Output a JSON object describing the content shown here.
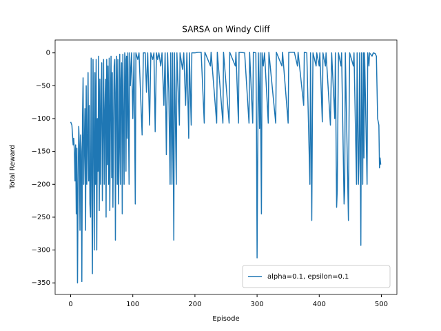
{
  "chart_data": {
    "type": "line",
    "title": "SARSA on Windy Cliff",
    "x_label": "Episode",
    "y_label": "Total Reward",
    "xlim": [
      -25,
      525
    ],
    "ylim": [
      -367.6,
      19.6
    ],
    "xticks": [
      0,
      100,
      200,
      300,
      400,
      500
    ],
    "yticks": [
      {
        "value": -350,
        "label": "−350"
      },
      {
        "value": -300,
        "label": "−300"
      },
      {
        "value": -250,
        "label": "−250"
      },
      {
        "value": -200,
        "label": "−200"
      },
      {
        "value": -150,
        "label": "−150"
      },
      {
        "value": -100,
        "label": "−100"
      },
      {
        "value": -50,
        "label": "−50"
      },
      0
    ],
    "legend": "lower right",
    "x": [
      0,
      2,
      4,
      5,
      6,
      7,
      8,
      9,
      10,
      11,
      12,
      13,
      14,
      15,
      16,
      17,
      18,
      19,
      20,
      21,
      22,
      23,
      24,
      25,
      26,
      27,
      28,
      29,
      30,
      31,
      32,
      33,
      34,
      35,
      36,
      37,
      38,
      39,
      40,
      41,
      42,
      43,
      44,
      45,
      46,
      47,
      48,
      49,
      50,
      51,
      52,
      53,
      54,
      55,
      56,
      57,
      58,
      59,
      60,
      61,
      62,
      63,
      64,
      65,
      66,
      67,
      68,
      69,
      70,
      71,
      72,
      73,
      74,
      75,
      76,
      77,
      78,
      79,
      80,
      81,
      82,
      83,
      84,
      85,
      86,
      87,
      88,
      89,
      90,
      91,
      92,
      94,
      95,
      96,
      98,
      100,
      102,
      104,
      105,
      108,
      110,
      115,
      117,
      120,
      122,
      124,
      127,
      129,
      132,
      134,
      136,
      138,
      140,
      142,
      145,
      147,
      150,
      152,
      154,
      156,
      158,
      160,
      161,
      163,
      164,
      166,
      167,
      170,
      171,
      175,
      176,
      180,
      182,
      185,
      187,
      190,
      191,
      194,
      195,
      200,
      205,
      210,
      215,
      216,
      225,
      226,
      235,
      236,
      245,
      246,
      255,
      256,
      265,
      266,
      270,
      271,
      280,
      287,
      288,
      293,
      294,
      298,
      299,
      300,
      301,
      302,
      304,
      305,
      307,
      308,
      310,
      312,
      318,
      319,
      330,
      331,
      340,
      341,
      350,
      351,
      360,
      365,
      366,
      375,
      376,
      380,
      385,
      386,
      388,
      389,
      390,
      395,
      396,
      400,
      401,
      405,
      406,
      410,
      411,
      418,
      420,
      425,
      426,
      428,
      429,
      430,
      431,
      435,
      436,
      440,
      441,
      442,
      447,
      448,
      449,
      455,
      456,
      460,
      461,
      463,
      464,
      465,
      467,
      468,
      470,
      471,
      472,
      473,
      477,
      478,
      480,
      481,
      485,
      487,
      490,
      492,
      494,
      495,
      496,
      497,
      498,
      499
    ],
    "series": [
      {
        "name": "alpha=0.1, epsilon=0.1",
        "color": "#1f77b4",
        "values": [
          -105,
          -110,
          -140,
          -130,
          -150,
          -195,
          -140,
          -245,
          -145,
          -350,
          -200,
          -112,
          -140,
          -270,
          -125,
          -150,
          -348,
          -100,
          -38,
          -200,
          -140,
          -85,
          -270,
          -50,
          -200,
          -140,
          -30,
          -195,
          -80,
          -230,
          -250,
          -8,
          -200,
          -336,
          -10,
          -120,
          -300,
          -30,
          -200,
          -10,
          -300,
          -100,
          -180,
          -5,
          -240,
          -40,
          -200,
          -80,
          -15,
          -225,
          -120,
          -10,
          -200,
          -90,
          -40,
          -250,
          -10,
          -170,
          -20,
          -200,
          -8,
          -240,
          -80,
          -5,
          -190,
          -30,
          -235,
          -100,
          -20,
          -10,
          -285,
          -60,
          -5,
          -200,
          -10,
          -230,
          -150,
          -2,
          -200,
          -40,
          -15,
          -245,
          -2,
          -100,
          -200,
          0,
          -10,
          -180,
          -5,
          -130,
          0,
          -200,
          0,
          -50,
          0,
          -100,
          0,
          -230,
          0,
          -10,
          0,
          -125,
          0,
          0,
          -60,
          0,
          -110,
          0,
          -10,
          0,
          -120,
          0,
          -10,
          0,
          -20,
          0,
          -80,
          0,
          -155,
          0,
          -60,
          -200,
          0,
          -200,
          0,
          -285,
          0,
          -200,
          0,
          -110,
          0,
          -25,
          0,
          -80,
          0,
          -130,
          0,
          -110,
          0,
          0,
          1,
          1,
          -107,
          1,
          -20,
          1,
          -107,
          1,
          -107,
          1,
          -107,
          1,
          -20,
          1,
          -107,
          1,
          0,
          -107,
          1,
          -107,
          1,
          0,
          -105,
          -312,
          -160,
          0,
          -115,
          0,
          -245,
          0,
          -20,
          0,
          -107,
          1,
          -107,
          1,
          -20,
          1,
          -107,
          1,
          1,
          -20,
          1,
          -80,
          1,
          0,
          -200,
          0,
          -255,
          -100,
          0,
          -20,
          0,
          -20,
          0,
          -105,
          0,
          -20,
          0,
          -110,
          0,
          -100,
          0,
          -235,
          -210,
          -100,
          0,
          -20,
          0,
          -230,
          -210,
          0,
          -255,
          -100,
          0,
          -20,
          0,
          -200,
          0,
          -200,
          -160,
          0,
          -293,
          0,
          -200,
          0,
          -160,
          0,
          -200,
          0,
          -20,
          0,
          -5,
          0,
          -1,
          -5,
          -100,
          -105,
          -110,
          -175,
          -160,
          -170
        ]
      }
    ]
  }
}
